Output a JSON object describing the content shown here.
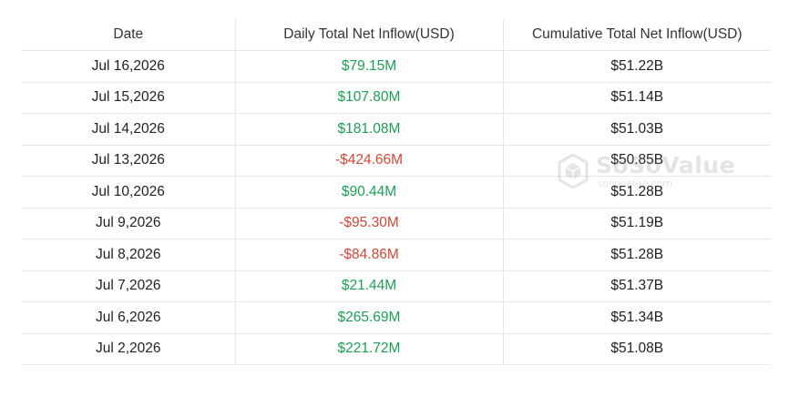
{
  "table": {
    "headers": {
      "date": "Date",
      "daily": "Daily Total Net Inflow(USD)",
      "cumulative": "Cumulative Total Net Inflow(USD)"
    },
    "rows": [
      {
        "date": "Jul 16,2026",
        "daily": "$79.15M",
        "daily_sign": "positive",
        "cumulative": "$51.22B"
      },
      {
        "date": "Jul 15,2026",
        "daily": "$107.80M",
        "daily_sign": "positive",
        "cumulative": "$51.14B"
      },
      {
        "date": "Jul 14,2026",
        "daily": "$181.08M",
        "daily_sign": "positive",
        "cumulative": "$51.03B"
      },
      {
        "date": "Jul 13,2026",
        "daily": "-$424.66M",
        "daily_sign": "negative",
        "cumulative": "$50.85B"
      },
      {
        "date": "Jul 10,2026",
        "daily": "$90.44M",
        "daily_sign": "positive",
        "cumulative": "$51.28B"
      },
      {
        "date": "Jul 9,2026",
        "daily": "-$95.30M",
        "daily_sign": "negative",
        "cumulative": "$51.19B"
      },
      {
        "date": "Jul 8,2026",
        "daily": "-$84.86M",
        "daily_sign": "negative",
        "cumulative": "$51.28B"
      },
      {
        "date": "Jul 7,2026",
        "daily": "$21.44M",
        "daily_sign": "positive",
        "cumulative": "$51.37B"
      },
      {
        "date": "Jul 6,2026",
        "daily": "$265.69M",
        "daily_sign": "positive",
        "cumulative": "$51.34B"
      },
      {
        "date": "Jul 2,2026",
        "daily": "$221.72M",
        "daily_sign": "positive",
        "cumulative": "$51.08B"
      }
    ]
  },
  "watermark": {
    "brand": "SoSoValue",
    "domain": "sosovalue.com",
    "icon": "sosovalue-logo-icon"
  },
  "colors": {
    "positive": "#1f9d55",
    "negative": "#d0473a",
    "text": "#222222",
    "divider": "#e6e6e6"
  }
}
